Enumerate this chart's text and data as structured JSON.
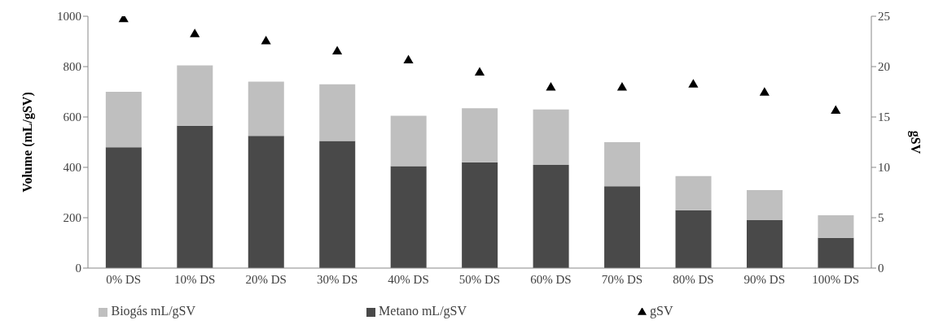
{
  "chart_data": {
    "type": "bar",
    "stacked": true,
    "ylabel": "Volume (mL/gSV)",
    "y2label": "gSV",
    "categories": [
      "0% DS",
      "10% DS",
      "20% DS",
      "30% DS",
      "40% DS",
      "50% DS",
      "60% DS",
      "70% DS",
      "80% DS",
      "90% DS",
      "100% DS"
    ],
    "series": [
      {
        "name": "Metano mL/gSV",
        "color": "#494949",
        "values": [
          480,
          565,
          525,
          505,
          405,
          420,
          410,
          325,
          230,
          190,
          120
        ]
      },
      {
        "name": "Biogás mL/gSV",
        "color": "#bfbfbf",
        "values": [
          220,
          240,
          215,
          225,
          200,
          215,
          220,
          175,
          135,
          120,
          90
        ]
      },
      {
        "name": "gSV",
        "type": "scatter",
        "axis": "y2",
        "marker": "triangle",
        "color": "#000000",
        "values": [
          24.7,
          23.2,
          22.5,
          21.5,
          20.6,
          19.4,
          17.9,
          17.9,
          18.2,
          17.4,
          15.6
        ]
      }
    ],
    "ylim": [
      0,
      1000
    ],
    "yticks": [
      0,
      200,
      400,
      600,
      800,
      1000
    ],
    "y2lim": [
      0,
      25
    ],
    "y2ticks": [
      0,
      5,
      10,
      15,
      20,
      25
    ],
    "grid": false,
    "legend": "bottom"
  }
}
